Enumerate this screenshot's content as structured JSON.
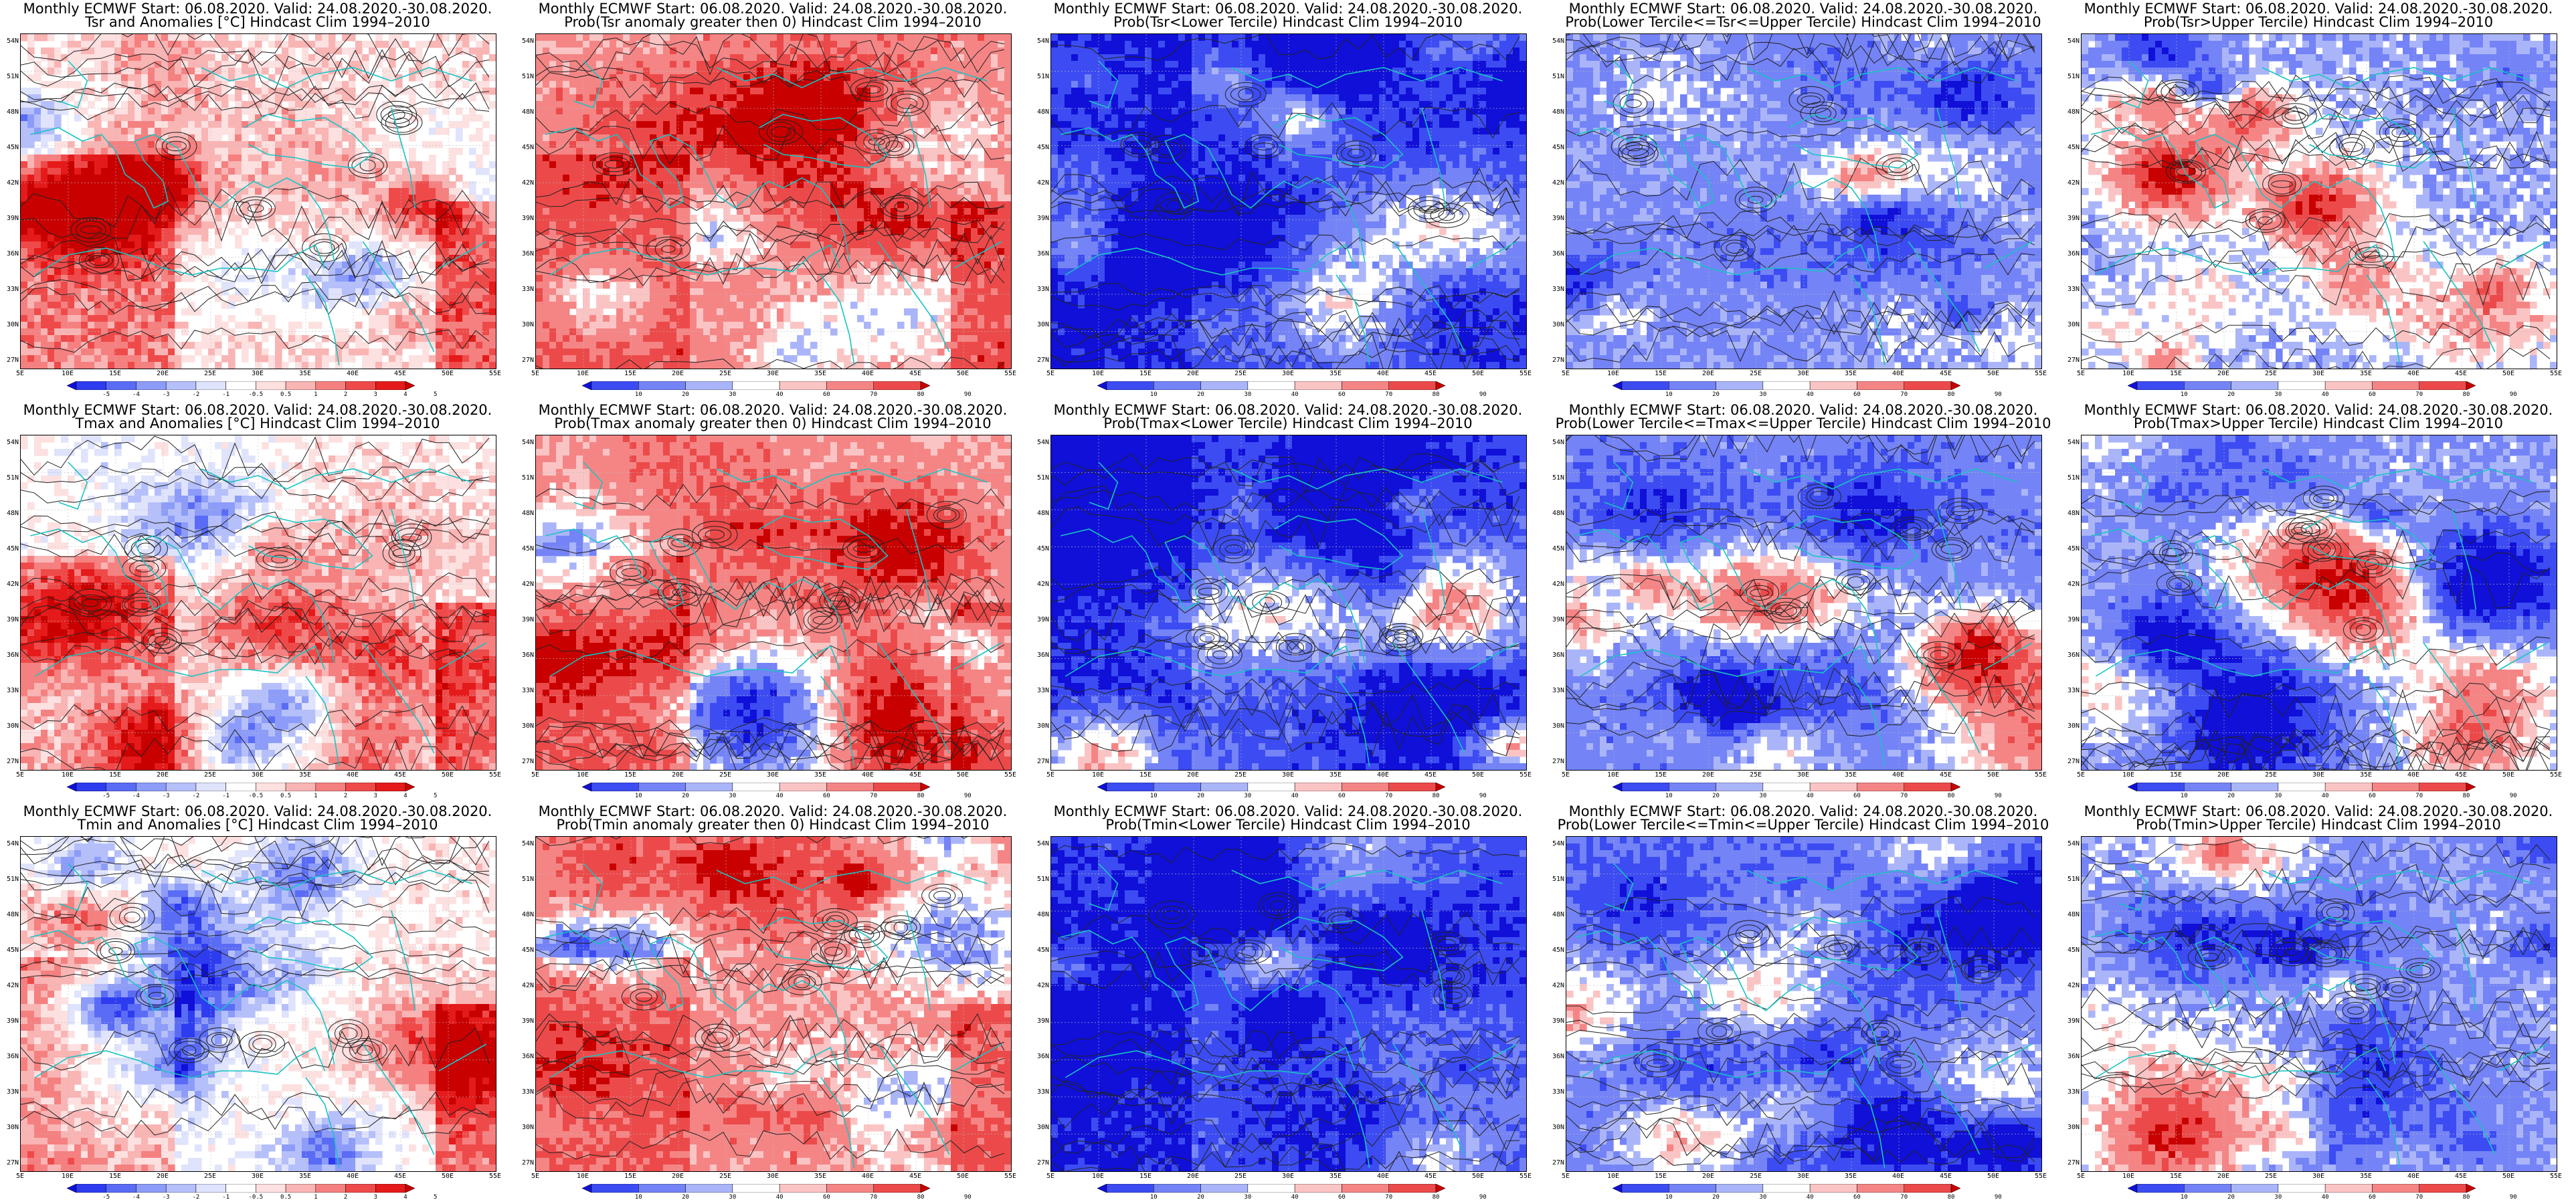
{
  "header_line": "Monthly ECMWF Start: 06.08.2020. Valid: 24.08.2020.-30.08.2020.",
  "lat_ticks": [
    "54N",
    "51N",
    "48N",
    "45N",
    "42N",
    "39N",
    "36N",
    "33N",
    "30N",
    "27N"
  ],
  "lon_ticks": [
    "5E",
    "10E",
    "15E",
    "20E",
    "25E",
    "30E",
    "35E",
    "40E",
    "45E",
    "50E",
    "55E"
  ],
  "anomaly_scale": {
    "labels": [
      "-5",
      "-4",
      "-3",
      "-2",
      "-1",
      "-0.5",
      "0.5",
      "1",
      "2",
      "3",
      "4",
      "5"
    ],
    "colors": [
      "#1010d8",
      "#2e3cf0",
      "#5a6cf5",
      "#8c9cf8",
      "#b5bffa",
      "#dfe3fc",
      "#ffffff",
      "#fde0e0",
      "#f9b4b4",
      "#f58080",
      "#ef4a4a",
      "#e51a1a",
      "#c80000"
    ]
  },
  "probability_scale": {
    "labels": [
      "10",
      "20",
      "30",
      "40",
      "60",
      "70",
      "80",
      "90"
    ],
    "colors": [
      "#1010d8",
      "#3c4cf2",
      "#7483f6",
      "#aab5f9",
      "#ffffff",
      "#fbc4c4",
      "#f58585",
      "#ec4a4a",
      "#c80000"
    ]
  },
  "panels": [
    {
      "title": "Tsr and Anomalies [°C] Hindcast Clim 1994–2010",
      "scale": "anomaly",
      "style": "anom",
      "bias": 0.15
    },
    {
      "title": "Prob(Tsr anomaly greater then 0) Hindcast Clim 1994–2010",
      "scale": "probability",
      "style": "pgt",
      "bias": 0.35
    },
    {
      "title": "Prob(Tsr<Lower Tercile) Hindcast Clim 1994–2010",
      "scale": "probability",
      "style": "plow",
      "bias": -0.75
    },
    {
      "title": "Prob(Lower Tercile<=Tsr<=Upper Tercile) Hindcast Clim 1994–2010",
      "scale": "probability",
      "style": "pmid",
      "bias": -0.35
    },
    {
      "title": "Prob(Tsr>Upper Tercile) Hindcast Clim 1994–2010",
      "scale": "probability",
      "style": "pup",
      "bias": -0.25
    },
    {
      "title": "Tmax and Anomalies [°C] Hindcast Clim 1994–2010",
      "scale": "anomaly",
      "style": "anom",
      "bias": 0.1
    },
    {
      "title": "Prob(Tmax anomaly greater then 0) Hindcast Clim 1994–2010",
      "scale": "probability",
      "style": "pgt",
      "bias": 0.3
    },
    {
      "title": "Prob(Tmax<Lower Tercile) Hindcast Clim 1994–2010",
      "scale": "probability",
      "style": "plow",
      "bias": -0.7
    },
    {
      "title": "Prob(Lower Tercile<=Tmax<=Upper Tercile) Hindcast Clim 1994–2010",
      "scale": "probability",
      "style": "pmid",
      "bias": -0.4
    },
    {
      "title": "Prob(Tmax>Upper Tercile) Hindcast Clim 1994–2010",
      "scale": "probability",
      "style": "pup",
      "bias": -0.3
    },
    {
      "title": "Tmin and Anomalies [°C] Hindcast Clim 1994–2010",
      "scale": "anomaly",
      "style": "anom",
      "bias": 0.1
    },
    {
      "title": "Prob(Tmin anomaly greater then 0) Hindcast Clim 1994–2010",
      "scale": "probability",
      "style": "pgt",
      "bias": 0.3
    },
    {
      "title": "Prob(Tmin<Lower Tercile) Hindcast Clim 1994–2010",
      "scale": "probability",
      "style": "plow",
      "bias": -0.7
    },
    {
      "title": "Prob(Lower Tercile<=Tmin<=Upper Tercile) Hindcast Clim 1994–2010",
      "scale": "probability",
      "style": "pmid",
      "bias": -0.45
    },
    {
      "title": "Prob(Tmin>Upper Tercile) Hindcast Clim 1994–2010",
      "scale": "probability",
      "style": "pup",
      "bias": -0.3
    }
  ]
}
